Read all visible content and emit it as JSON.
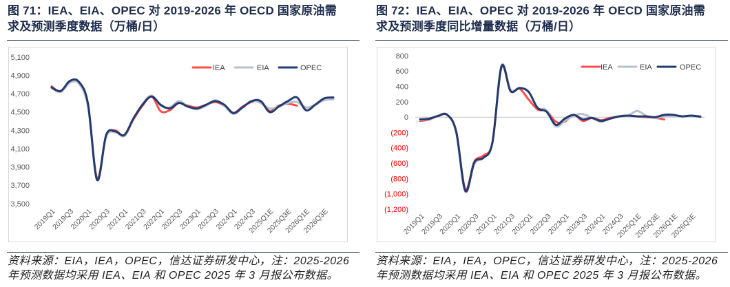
{
  "chart_data": [
    {
      "type": "line",
      "title_lines": [
        "图 71：IEA、EIA、OPEC 对 2019-2026 年 OECD 国家原油需",
        "求及预测季度数据（万桶/日）"
      ],
      "source_lines": [
        "资料来源：EIA，IEA，OPEC，信达证券研发中心，注：2025-2026",
        "年预测数据均采用 IEA、EIA 和 OPEC 2025 年 3 月报公布数据。"
      ],
      "categories": [
        "2019Q1",
        "2019Q2",
        "2019Q3",
        "2019Q4",
        "2020Q1",
        "2020Q2",
        "2020Q3",
        "2020Q4",
        "2021Q1",
        "2021Q2",
        "2021Q3",
        "2021Q4",
        "2022Q1",
        "2022Q2",
        "2022Q3",
        "2022Q4",
        "2023Q1",
        "2023Q2",
        "2023Q3",
        "2023Q4",
        "2024Q1",
        "2024Q2",
        "2024Q3",
        "2024Q4",
        "2025Q1E",
        "2025Q2E",
        "2025Q3E",
        "2025Q4E",
        "2026Q1E",
        "2026Q2E",
        "2026Q3E",
        "2026Q4E"
      ],
      "ylim": [
        3500,
        5100
      ],
      "y_ticks": [
        5100,
        4900,
        4700,
        4500,
        4300,
        4100,
        3900,
        3700,
        3500
      ],
      "y_tick_labels": [
        "5,100",
        "4,900",
        "4,700",
        "4,500",
        "4,300",
        "4,100",
        "3,900",
        "3,700",
        "3,500"
      ],
      "grid": false,
      "legend": "top-right",
      "series": [
        {
          "name": "IEA",
          "color": "#ff4d4d",
          "values": [
            4780,
            4720,
            4830,
            4820,
            4570,
            3780,
            4240,
            4300,
            4240,
            4420,
            4570,
            4670,
            4510,
            4520,
            4600,
            4570,
            4550,
            4580,
            4610,
            4570,
            4490,
            4560,
            4610,
            4620,
            4510,
            4570,
            4590,
            4570,
            null,
            null,
            null,
            null
          ]
        },
        {
          "name": "EIA",
          "color": "#b7c0cc",
          "values": [
            4760,
            4720,
            4820,
            4810,
            4560,
            3760,
            4230,
            4280,
            4240,
            4430,
            4590,
            4680,
            4570,
            4550,
            4620,
            4560,
            4530,
            4570,
            4630,
            4570,
            4480,
            4550,
            4620,
            4600,
            4540,
            4560,
            4600,
            4610,
            4550,
            4580,
            4630,
            4640
          ]
        },
        {
          "name": "OPEC",
          "color": "#223a6e",
          "values": [
            4770,
            4730,
            4840,
            4830,
            4590,
            3760,
            4250,
            4290,
            4250,
            4430,
            4580,
            4670,
            4580,
            4540,
            4600,
            4560,
            4540,
            4580,
            4620,
            4580,
            4490,
            4550,
            4620,
            4620,
            4500,
            4560,
            4620,
            4660,
            4520,
            4580,
            4650,
            4660
          ]
        }
      ]
    },
    {
      "type": "line",
      "title_lines": [
        "图 72：IEA、EIA、OPEC 对 2019-2026 年 OECD 国家原油需",
        "求及预测季度同比增量数据（万桶/日）"
      ],
      "source_lines": [
        "资料来源：EIA，IEA，OPEC，信达证券研发中心，注：2025-2026",
        "年预测数据均采用 IEA、EIA 和 OPEC 2025 年 3 月报公布数据。"
      ],
      "categories": [
        "2019Q1",
        "2019Q2",
        "2019Q3",
        "2019Q4",
        "2020Q1",
        "2020Q2",
        "2020Q3",
        "2020Q4",
        "2021Q1",
        "2021Q2",
        "2021Q3",
        "2021Q4",
        "2022Q1",
        "2022Q2",
        "2022Q3",
        "2022Q4",
        "2023Q1",
        "2023Q2",
        "2023Q3",
        "2023Q4",
        "2024Q1",
        "2024Q2",
        "2024Q3",
        "2024Q4",
        "2025Q1E",
        "2025Q2E",
        "2025Q3E",
        "2025Q4E",
        "2026Q1E",
        "2026Q2E",
        "2026Q3E",
        "2026Q4E"
      ],
      "ylim": [
        -1200,
        800
      ],
      "y_ticks": [
        800,
        600,
        400,
        200,
        0,
        -200,
        -400,
        -600,
        -800,
        -1000,
        -1200
      ],
      "y_tick_labels": [
        "800",
        "600",
        "400",
        "200",
        "0",
        "(200)",
        "(400)",
        "(600)",
        "(800)",
        "(1,000)",
        "(1,200)"
      ],
      "negative_label_color": "#ff0000",
      "grid": false,
      "legend": "top-right",
      "series": [
        {
          "name": "IEA",
          "color": "#ff4d4d",
          "values": [
            -50,
            -30,
            20,
            30,
            -200,
            -940,
            -580,
            -500,
            -330,
            650,
            340,
            370,
            230,
            100,
            80,
            -60,
            -60,
            30,
            -50,
            -10,
            -40,
            -10,
            10,
            20,
            10,
            0,
            -10,
            -30,
            null,
            null,
            null,
            null
          ]
        },
        {
          "name": "EIA",
          "color": "#b7c0cc",
          "values": [
            -40,
            -20,
            20,
            30,
            -210,
            -970,
            -610,
            -530,
            -330,
            670,
            360,
            380,
            330,
            120,
            90,
            -120,
            -50,
            20,
            40,
            -10,
            -60,
            -20,
            10,
            20,
            80,
            20,
            -10,
            10,
            20,
            10,
            20,
            10
          ]
        },
        {
          "name": "OPEC",
          "color": "#223a6e",
          "values": [
            -30,
            -20,
            15,
            30,
            -190,
            -960,
            -590,
            -530,
            -330,
            660,
            340,
            380,
            330,
            120,
            70,
            -100,
            -20,
            30,
            -30,
            -10,
            -50,
            -20,
            10,
            20,
            10,
            10,
            0,
            30,
            30,
            10,
            20,
            5
          ]
        }
      ]
    }
  ]
}
